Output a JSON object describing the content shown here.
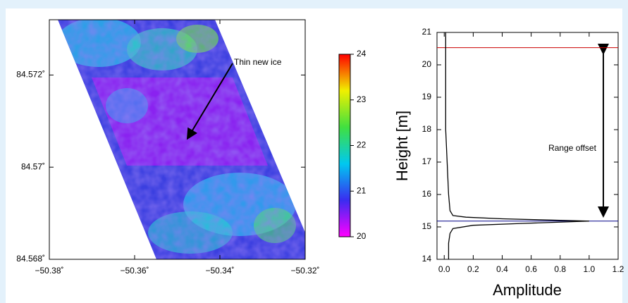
{
  "chart_data": [
    {
      "type": "heatmap",
      "xlim": [
        -50.38,
        -50.32
      ],
      "xticks": [
        {
          "value": -50.38,
          "label": "−50.38˚"
        },
        {
          "value": -50.36,
          "label": "−50.36˚"
        },
        {
          "value": -50.34,
          "label": "−50.34˚"
        },
        {
          "value": -50.32,
          "label": "−50.32˚"
        }
      ],
      "ylim": [
        84.568,
        84.5732
      ],
      "yticks": [
        {
          "value": 84.568,
          "label": "84.568˚"
        },
        {
          "value": 84.57,
          "label": "84.57˚"
        },
        {
          "value": 84.572,
          "label": "84.572˚"
        }
      ],
      "colorbar": {
        "lim": [
          20,
          24
        ],
        "ticks": [
          20,
          21,
          22,
          23,
          24
        ],
        "colors": [
          "#ff00ff",
          "#3a2cf0",
          "#00c8f0",
          "#40e040",
          "#f0f000",
          "#ff0000"
        ]
      },
      "annotation": "Thin new ice"
    },
    {
      "type": "line",
      "xlabel": "Amplitude",
      "ylabel": "Height [m]",
      "xlim": [
        -0.05,
        1.2
      ],
      "xticks": [
        {
          "value": 0,
          "label": "0.0"
        },
        0.2,
        0.4,
        0.6,
        0.8,
        {
          "value": 1,
          "label": "1.0"
        },
        1.2
      ],
      "ylim": [
        14,
        21
      ],
      "yticks": [
        14,
        15,
        16,
        17,
        18,
        19,
        20,
        21
      ],
      "x": [
        0.03,
        0.03,
        0.04,
        0.06,
        0.2,
        0.5,
        1.0,
        0.4,
        0.15,
        0.06,
        0.04,
        0.03,
        0.02,
        0.01,
        0.01,
        0.01,
        0.01
      ],
      "series": [
        {
          "color": "#000000",
          "values": [
            14,
            14.5,
            14.8,
            14.95,
            15.05,
            15.1,
            15.18,
            15.25,
            15.3,
            15.35,
            15.5,
            16,
            17,
            18,
            19,
            20,
            21
          ]
        }
      ],
      "hlines": [
        {
          "value": 20.53,
          "color": "#cc0000"
        },
        {
          "value": 15.18,
          "color": "#000088"
        }
      ],
      "annotation": "Range offset"
    }
  ]
}
